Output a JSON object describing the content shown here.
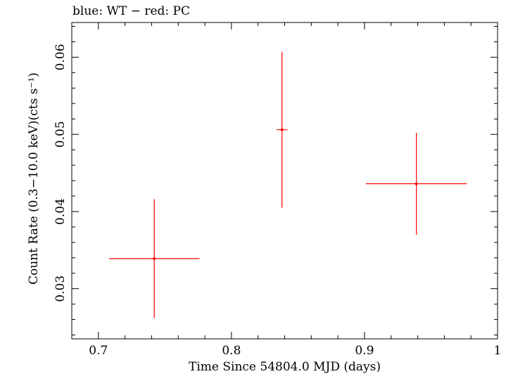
{
  "chart_data": {
    "type": "scatter",
    "title": "blue: WT − red: PC",
    "xlabel": "Time Since 54804.0 MJD (days)",
    "ylabel": "Count Rate (0.3−10.0 keV)(cts s⁻¹)",
    "xlim": [
      0.68,
      1.0
    ],
    "ylim": [
      0.0235,
      0.0645
    ],
    "xticks": [
      0.7,
      0.8,
      0.9,
      1.0
    ],
    "xtick_labels": [
      "0.7",
      "0.8",
      "0.9",
      "1"
    ],
    "yticks": [
      0.03,
      0.04,
      0.05,
      0.06
    ],
    "ytick_labels": [
      "0.03",
      "0.04",
      "0.05",
      "0.06"
    ],
    "grid": false,
    "series": [
      {
        "color": "#ff0000",
        "points": [
          {
            "x": 0.742,
            "y": 0.0339,
            "xerr": [
              0.034,
              0.034
            ],
            "yerr": [
              0.0077,
              0.0077
            ]
          },
          {
            "x": 0.838,
            "y": 0.0506,
            "xerr": [
              0.004,
              0.004
            ],
            "yerr": [
              0.0101,
              0.0101
            ]
          },
          {
            "x": 0.939,
            "y": 0.0436,
            "xerr": [
              0.038,
              0.038
            ],
            "yerr": [
              0.0066,
              0.0066
            ]
          }
        ]
      }
    ]
  }
}
